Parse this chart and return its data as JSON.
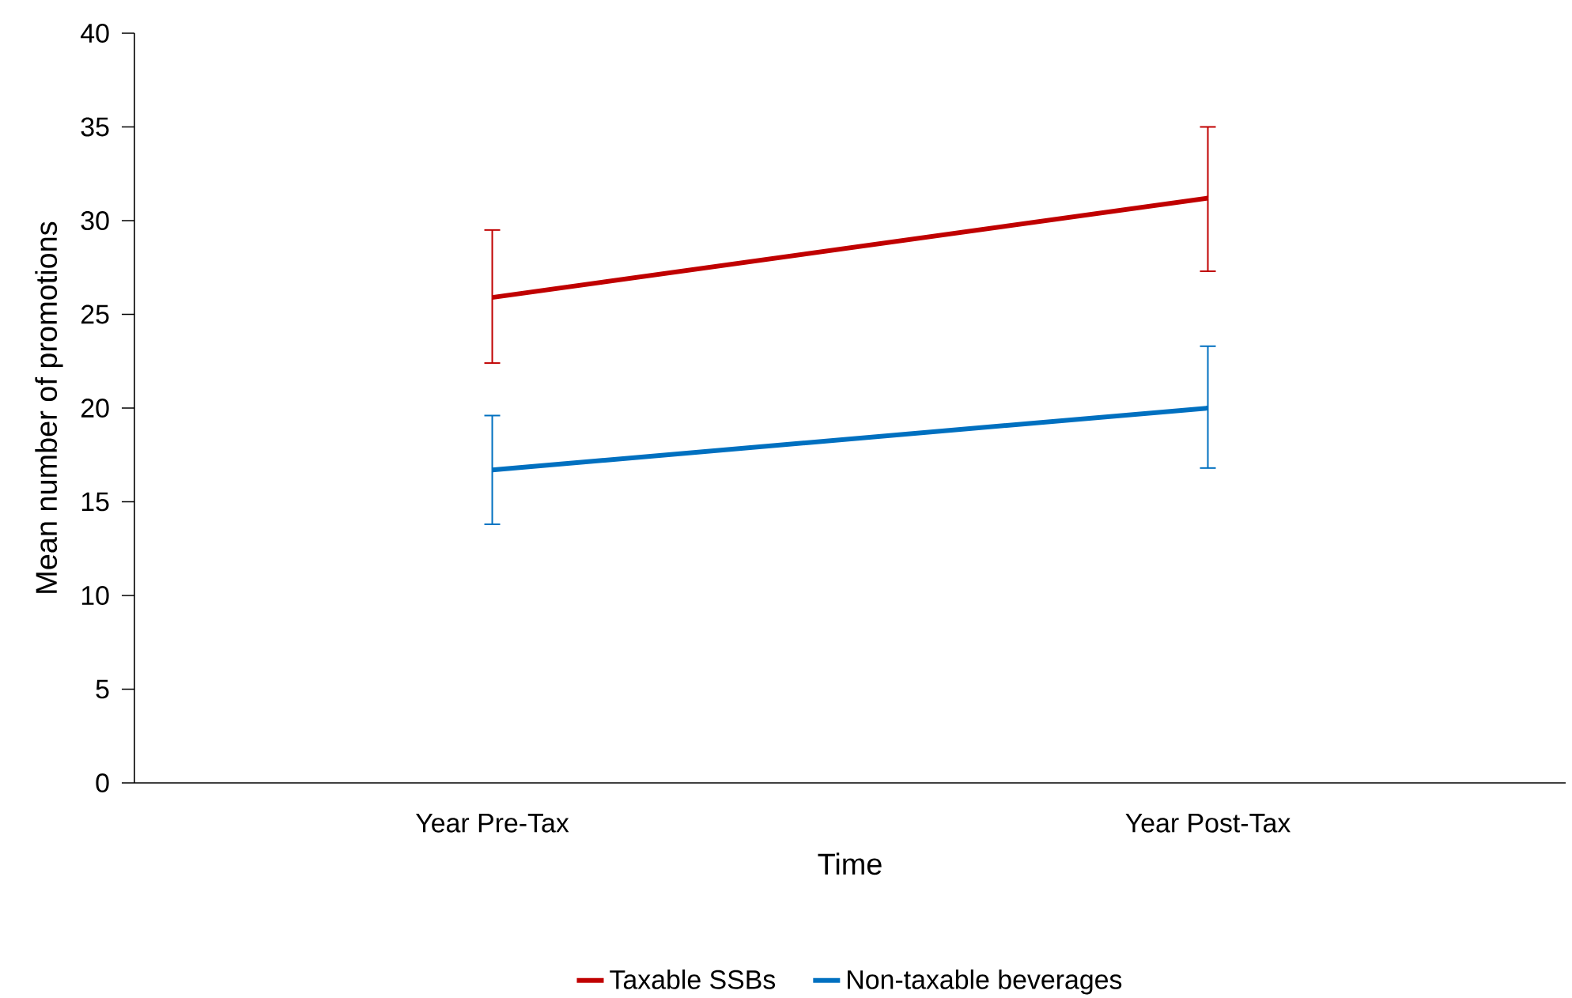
{
  "chart_data": {
    "type": "line",
    "xlabel": "Time",
    "ylabel": "Mean number of promotions",
    "categories": [
      "Year Pre-Tax",
      "Year Post-Tax"
    ],
    "series": [
      {
        "name": "Taxable SSBs",
        "color": "#c00000",
        "values": [
          25.9,
          31.2
        ],
        "errors": [
          [
            22.4,
            29.5
          ],
          [
            27.3,
            35.0
          ]
        ]
      },
      {
        "name": "Non-taxable beverages",
        "color": "#0070c0",
        "values": [
          16.7,
          20.0
        ],
        "errors": [
          [
            13.8,
            19.6
          ],
          [
            16.8,
            23.3
          ]
        ]
      }
    ],
    "ylim": [
      0,
      40
    ],
    "yticks": [
      0,
      5,
      10,
      15,
      20,
      25,
      30,
      35,
      40
    ],
    "grid": false,
    "legend": "bottom",
    "marker": "none",
    "line_style": "solid"
  }
}
